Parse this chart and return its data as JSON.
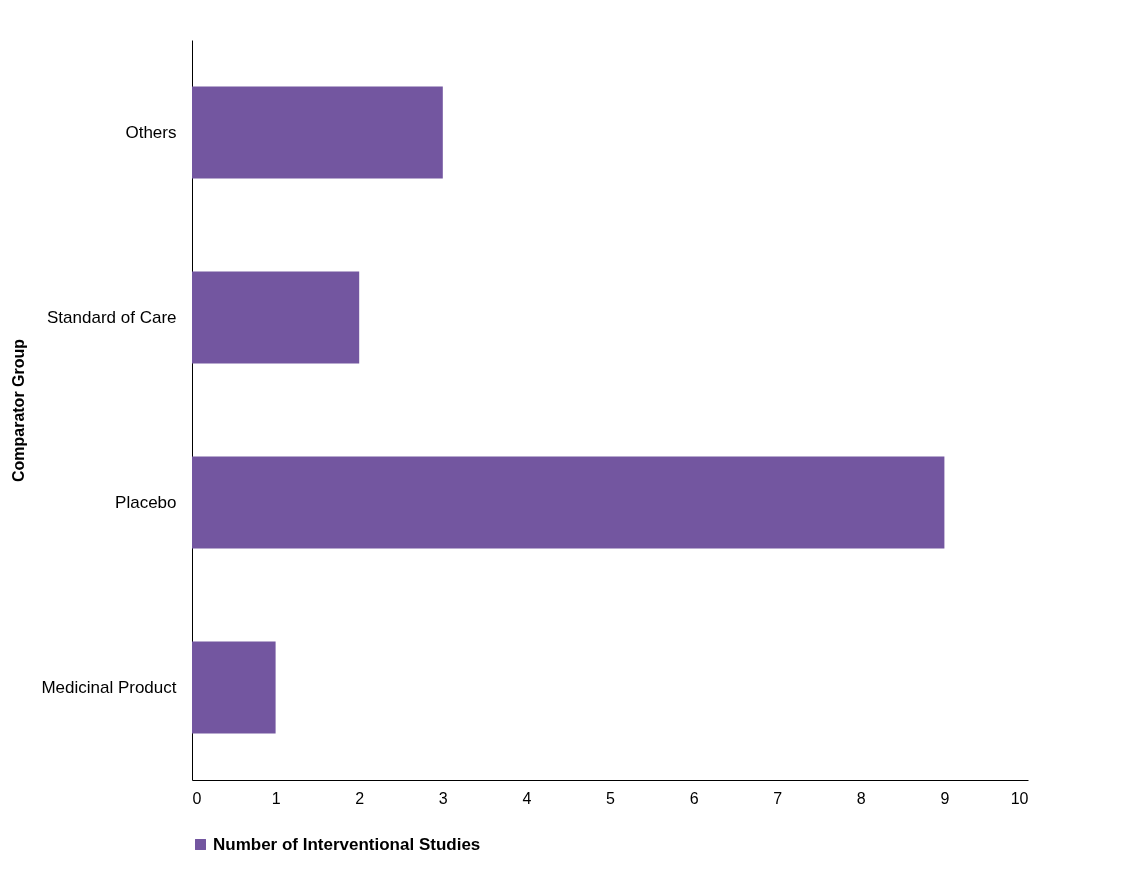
{
  "chart_data": {
    "type": "bar",
    "orientation": "horizontal",
    "ylabel": "Comparator Group",
    "categories": [
      "Others",
      "Standard of Care",
      "Placebo",
      "Medicinal Product"
    ],
    "series": [
      {
        "name": "Number of Interventional Studies",
        "color": "#7356a0",
        "values": [
          3,
          2,
          9,
          1
        ]
      }
    ],
    "xlim": [
      0,
      10
    ],
    "xticks": [
      0,
      1,
      2,
      3,
      4,
      5,
      6,
      7,
      8,
      9,
      10
    ],
    "grid": false,
    "legend": "bottom"
  }
}
